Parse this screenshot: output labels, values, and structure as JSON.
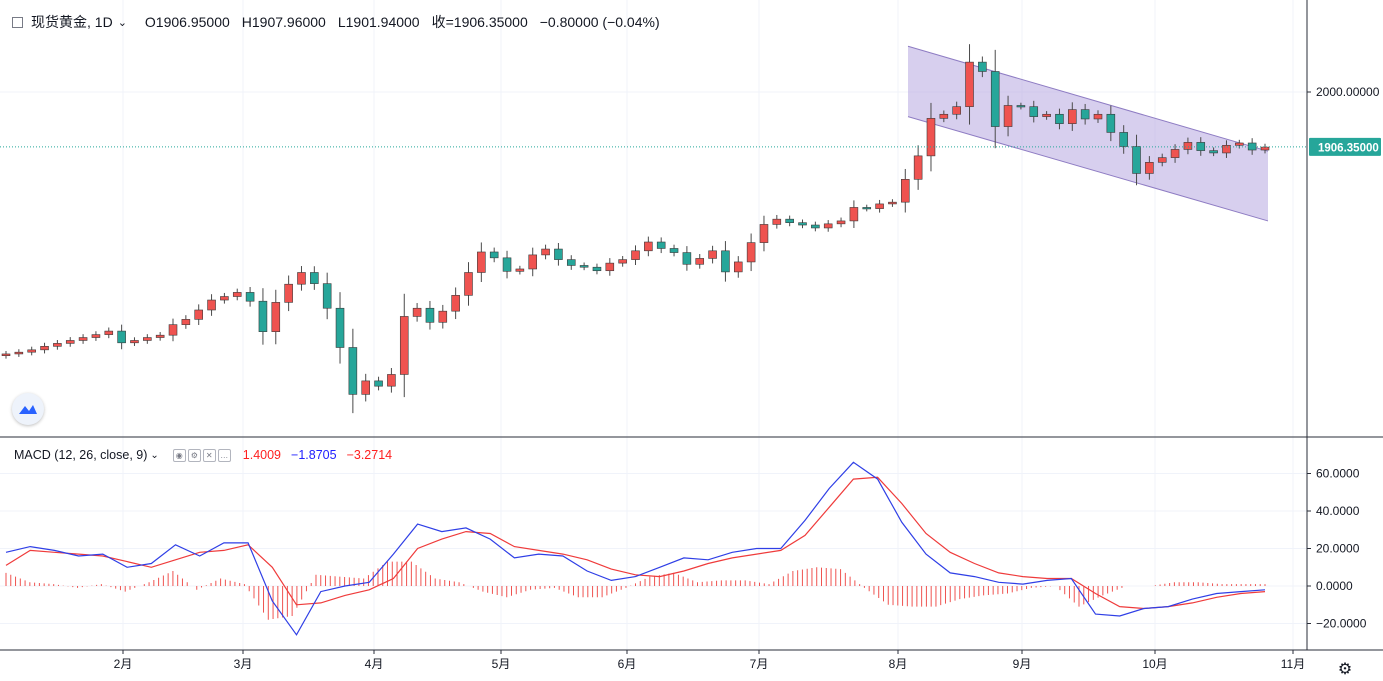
{
  "header": {
    "symbol": "现货黄金, 1D",
    "open": "O1906.95000",
    "high": "H1907.96000",
    "low": "L1901.94000",
    "close": "收=1906.35000",
    "change": "−0.80000 (−0.04%)"
  },
  "price_scale": {
    "level_label": "2000.00000",
    "last_price_label": "1906.35000",
    "last_price_color": "#26a69a"
  },
  "macd_panel": {
    "title": "MACD (12, 26, close, 9)",
    "histogram_value": "1.4009",
    "macd_value": "−1.8705",
    "signal_value": "−3.2714",
    "ticks": [
      "60.0000",
      "40.0000",
      "20.0000",
      "0.0000",
      "−20.0000"
    ]
  },
  "time_axis": {
    "labels": [
      "2月",
      "3月",
      "4月",
      "5月",
      "6月",
      "7月",
      "8月",
      "9月",
      "10月",
      "11月"
    ]
  },
  "colors": {
    "up": "#ef5350",
    "down": "#26a69a",
    "channel_fill": "#b7a8e0",
    "channel_line": "#8e7cc3",
    "macd_line": "#2f3fe6",
    "signal_line": "#ef3b3b",
    "histogram": "#ef5350"
  },
  "chart_data": [
    {
      "type": "candlestick",
      "title": "现货黄金, 1D",
      "x_labels": [
        "2月",
        "3月",
        "4月",
        "5月",
        "6月",
        "7月",
        "8月",
        "9月",
        "10月",
        "11月"
      ],
      "y_tick": 2000,
      "last_price": 1906.35,
      "ohlc_last": {
        "open": 1906.95,
        "high": 1907.96,
        "low": 1901.94,
        "close": 1906.35
      },
      "close_series": [
        1553,
        1556,
        1560,
        1566,
        1571,
        1576,
        1581,
        1586,
        1592,
        1572,
        1576,
        1581,
        1585,
        1603,
        1612,
        1628,
        1645,
        1651,
        1658,
        1643,
        1591,
        1641,
        1672,
        1692,
        1673,
        1631,
        1564,
        1484,
        1507,
        1498,
        1518,
        1617,
        1631,
        1607,
        1626,
        1653,
        1692,
        1727,
        1717,
        1694,
        1698,
        1722,
        1732,
        1714,
        1704,
        1701,
        1695,
        1708,
        1714,
        1729,
        1744,
        1733,
        1726,
        1706,
        1716,
        1729,
        1693,
        1710,
        1743,
        1774,
        1783,
        1777,
        1773,
        1768,
        1775,
        1780,
        1803,
        1801,
        1809,
        1812,
        1851,
        1891,
        1955,
        1962,
        1975,
        2051,
        2035,
        1941,
        1977,
        1975,
        1958,
        1962,
        1946,
        1970,
        1954,
        1962,
        1931,
        1907,
        1861,
        1880,
        1888,
        1902,
        1914,
        1900,
        1896,
        1909,
        1913,
        1901,
        1906
      ],
      "channel": {
        "upper_start": 2078,
        "upper_end": 1899,
        "lower_start": 1958,
        "lower_end": 1780
      }
    },
    {
      "type": "line",
      "title": "MACD (12, 26, close, 9)",
      "series": [
        {
          "name": "MACD",
          "values": [
            18,
            21,
            19,
            16,
            17,
            10,
            12,
            22,
            16,
            23,
            23,
            -8,
            -26,
            -3,
            0,
            2,
            17,
            33,
            29,
            31,
            25,
            15,
            17,
            16,
            8,
            3,
            5,
            10,
            15,
            14,
            18,
            20,
            20,
            35,
            52,
            66,
            57,
            34,
            17,
            7,
            5,
            2,
            1,
            3,
            4,
            -15,
            -16,
            -12,
            -11,
            -7,
            -4,
            -3,
            -2
          ]
        },
        {
          "name": "Signal",
          "values": [
            11,
            19,
            18,
            17,
            16,
            13,
            10,
            14,
            18,
            19,
            22,
            10,
            -10,
            -9,
            -5,
            -2,
            4,
            20,
            25,
            29,
            28,
            21,
            19,
            17,
            14,
            9,
            6,
            5,
            8,
            12,
            15,
            17,
            19,
            27,
            42,
            57,
            58,
            44,
            28,
            18,
            12,
            7,
            5,
            4,
            4,
            -4,
            -11,
            -12,
            -11,
            -9,
            -6,
            -4,
            -3
          ]
        }
      ],
      "histogram": [
        7,
        2,
        1,
        -1,
        1,
        -3,
        2,
        8,
        -2,
        4,
        1,
        -18,
        -16,
        6,
        5,
        4,
        13,
        13,
        4,
        2,
        -3,
        -6,
        -2,
        -1,
        -6,
        -6,
        -1,
        5,
        7,
        2,
        3,
        3,
        1,
        8,
        10,
        9,
        -1,
        -10,
        -11,
        -11,
        -7,
        -5,
        -4,
        -1,
        0,
        -11,
        -5,
        0,
        0,
        2,
        2,
        1,
        1
      ],
      "ylim": [
        -25,
        70
      ],
      "y_ticks": [
        60,
        40,
        20,
        0,
        -20
      ]
    }
  ]
}
